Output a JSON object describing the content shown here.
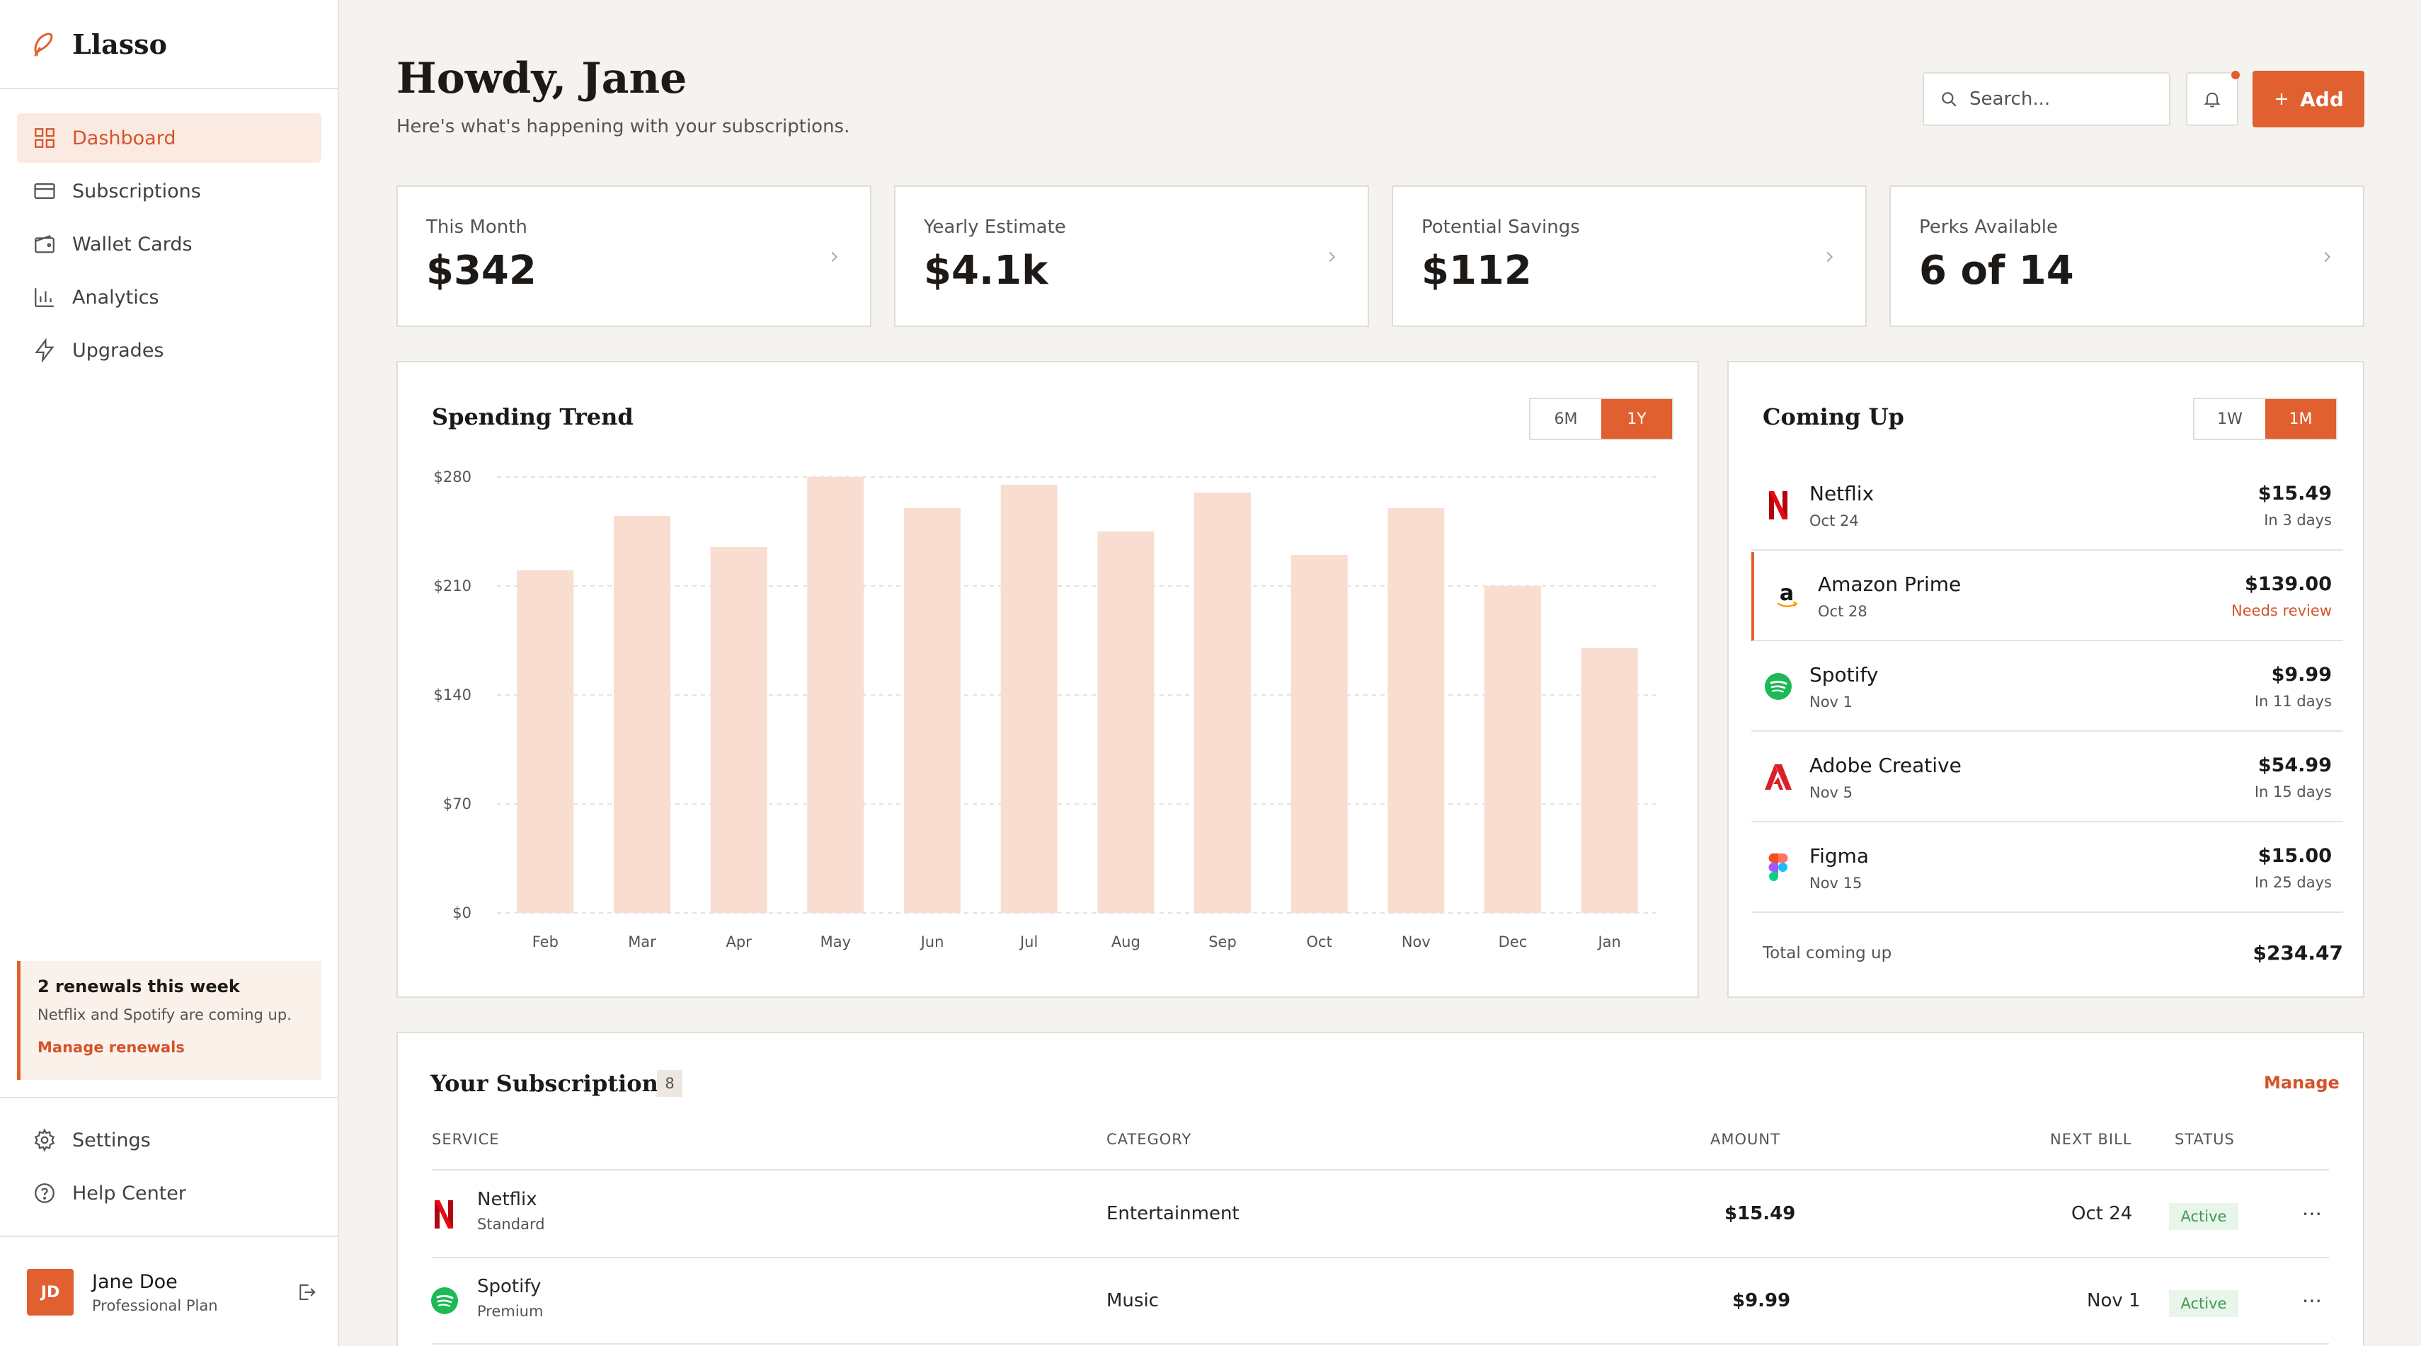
{
  "app": {
    "name": "Llasso"
  },
  "sidebar": {
    "nav": [
      {
        "label": "Dashboard",
        "icon": "dashboard-icon",
        "active": true
      },
      {
        "label": "Subscriptions",
        "icon": "card-icon"
      },
      {
        "label": "Wallet Cards",
        "icon": "wallet-icon"
      },
      {
        "label": "Analytics",
        "icon": "bar-chart-icon"
      },
      {
        "label": "Upgrades",
        "icon": "lightning-icon"
      }
    ],
    "notice": {
      "title": "2 renewals this week",
      "body": "Netflix and Spotify are coming up.",
      "link": "Manage renewals"
    },
    "bottom_nav": [
      {
        "label": "Settings",
        "icon": "gear-icon"
      },
      {
        "label": "Help Center",
        "icon": "help-icon"
      }
    ],
    "user": {
      "initials": "JD",
      "name": "Jane Doe",
      "plan": "Professional Plan"
    }
  },
  "header": {
    "greeting": "Howdy, Jane",
    "subtitle": "Here's what's happening with your subscriptions.",
    "search_placeholder": "Search...",
    "add_label": "Add"
  },
  "stats": [
    {
      "label": "This Month",
      "value": "$342"
    },
    {
      "label": "Yearly Estimate",
      "value": "$4.1k"
    },
    {
      "label": "Potential Savings",
      "value": "$112"
    },
    {
      "label": "Perks Available",
      "value": "6 of 14"
    }
  ],
  "spending": {
    "title": "Spending Trend",
    "ranges": [
      "6M",
      "1Y"
    ],
    "active_range": "1Y"
  },
  "chart_data": {
    "type": "bar",
    "title": "Spending Trend",
    "categories": [
      "Feb",
      "Mar",
      "Apr",
      "May",
      "Jun",
      "Jul",
      "Aug",
      "Sep",
      "Oct",
      "Nov",
      "Dec",
      "Jan"
    ],
    "values": [
      220,
      255,
      235,
      280,
      260,
      275,
      245,
      270,
      230,
      260,
      210,
      170
    ],
    "ylim": [
      0,
      280
    ],
    "yticks": [
      "$0",
      "$70",
      "$140",
      "$210",
      "$280"
    ],
    "ytick_values": [
      0,
      70,
      140,
      210,
      280
    ],
    "bar_color": "#f8ddd0",
    "grid": true
  },
  "upcoming": {
    "title": "Coming Up",
    "ranges": [
      "1W",
      "1M"
    ],
    "active_range": "1M",
    "items": [
      {
        "name": "Netflix",
        "date": "Oct 24",
        "amount": "$15.49",
        "when": "In 3 days",
        "icon": "netflix-icon"
      },
      {
        "name": "Amazon Prime",
        "date": "Oct 28",
        "amount": "$139.00",
        "when": "Needs review",
        "icon": "amazon-icon",
        "review": true
      },
      {
        "name": "Spotify",
        "date": "Nov 1",
        "amount": "$9.99",
        "when": "In 11 days",
        "icon": "spotify-icon"
      },
      {
        "name": "Adobe Creative",
        "date": "Nov 5",
        "amount": "$54.99",
        "when": "In 15 days",
        "icon": "adobe-icon"
      },
      {
        "name": "Figma",
        "date": "Nov 15",
        "amount": "$15.00",
        "when": "In 25 days",
        "icon": "figma-icon"
      }
    ],
    "total_label": "Total coming up",
    "total": "$234.47"
  },
  "subscriptions": {
    "title": "Your Subscriptions",
    "count": "8",
    "manage_label": "Manage",
    "columns": [
      "SERVICE",
      "CATEGORY",
      "AMOUNT",
      "NEXT BILL",
      "STATUS"
    ],
    "rows": [
      {
        "name": "Netflix",
        "plan": "Standard",
        "category": "Entertainment",
        "amount": "$15.49",
        "next_bill": "Oct 24",
        "status": "Active",
        "icon": "netflix-icon"
      },
      {
        "name": "Spotify",
        "plan": "Premium",
        "category": "Music",
        "amount": "$9.99",
        "next_bill": "Nov 1",
        "status": "Active",
        "icon": "spotify-icon"
      }
    ]
  },
  "colors": {
    "accent": "#e0602f",
    "bg": "#f5f3ef",
    "success": "#3f9a4f"
  }
}
